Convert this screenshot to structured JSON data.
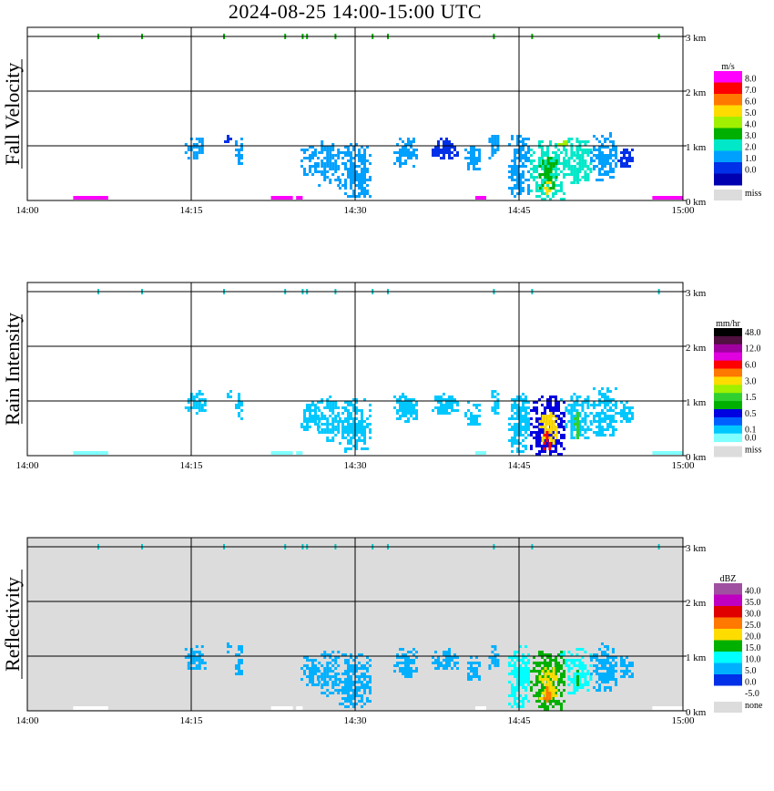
{
  "title": "2024-08-25  14:00-15:00 UTC",
  "chart_data": {
    "type": "heatmap",
    "title": "2024-08-25  14:00-15:00 UTC",
    "x_ticks": [
      "14:00",
      "14:15",
      "14:30",
      "14:45",
      "15:00"
    ],
    "x_range": [
      "14:00",
      "15:00"
    ],
    "y_ticks": [
      "0 km",
      "1 km",
      "2 km",
      "3 km"
    ],
    "y_range_km": [
      0,
      3.2
    ],
    "grid": true,
    "legend_placement": "right",
    "panels": [
      {
        "id": "fall",
        "ylabel": "Fall Velocity",
        "background": "#ffffff",
        "unit": "m/s",
        "colorbar": [
          {
            "label": "8.0",
            "color": "#ff00ff"
          },
          {
            "label": "7.0",
            "color": "#ff0000"
          },
          {
            "label": "6.0",
            "color": "#ff7800"
          },
          {
            "label": "5.0",
            "color": "#ffdc00"
          },
          {
            "label": "4.0",
            "color": "#a0f000"
          },
          {
            "label": "3.0",
            "color": "#00b000"
          },
          {
            "label": "2.0",
            "color": "#00e8c8"
          },
          {
            "label": "1.0",
            "color": "#00a0ff"
          },
          {
            "label": "0.0",
            "color": "#0030e8"
          },
          {
            "label": "",
            "color": "#0000b0"
          }
        ],
        "missing_label": "miss",
        "missing_color": "#dcdcdc"
      },
      {
        "id": "rain",
        "ylabel": "Rain Intensity",
        "background": "#ffffff",
        "unit": "mm/hr",
        "colorbar": [
          {
            "label": "48.0",
            "color": "#000000"
          },
          {
            "label": "",
            "color": "#501040"
          },
          {
            "label": "12.0",
            "color": "#a000a0"
          },
          {
            "label": "",
            "color": "#e000e0"
          },
          {
            "label": "6.0",
            "color": "#ff0000"
          },
          {
            "label": "",
            "color": "#ff7800"
          },
          {
            "label": "3.0",
            "color": "#ffdc00"
          },
          {
            "label": "",
            "color": "#a0f000"
          },
          {
            "label": "1.5",
            "color": "#30d030"
          },
          {
            "label": "",
            "color": "#00b000"
          },
          {
            "label": "0.5",
            "color": "#0000e0"
          },
          {
            "label": "",
            "color": "#0060ff"
          },
          {
            "label": "0.1",
            "color": "#00c8ff"
          },
          {
            "label": "0.0",
            "color": "#80ffff"
          }
        ],
        "missing_label": "miss",
        "missing_color": "#dcdcdc"
      },
      {
        "id": "refl",
        "ylabel": "Reflectivity",
        "background": "#dcdcdc",
        "unit": "dBZ",
        "colorbar": [
          {
            "label": "40.0",
            "color": "#a050a0"
          },
          {
            "label": "35.0",
            "color": "#c000c0"
          },
          {
            "label": "30.0",
            "color": "#e00000"
          },
          {
            "label": "25.0",
            "color": "#ff7800"
          },
          {
            "label": "20.0",
            "color": "#ffdc00"
          },
          {
            "label": "15.0",
            "color": "#00b000"
          },
          {
            "label": "10.0",
            "color": "#00ffff"
          },
          {
            "label": "5.0",
            "color": "#00b0ff"
          },
          {
            "label": "0.0",
            "color": "#0030e8"
          },
          {
            "label": "-5.0",
            "color": "#ffffff"
          }
        ],
        "missing_label": "none",
        "missing_color": "#dcdcdc"
      }
    ],
    "echoes": [
      {
        "t0": 14.4,
        "t1": 16.2,
        "h0": 0.75,
        "h1": 1.2,
        "fall": 1.0,
        "rain": 0.1,
        "refl": 5
      },
      {
        "t0": 18.0,
        "t1": 18.6,
        "h0": 1.05,
        "h1": 1.25,
        "fall": 0.5,
        "rain": 0.1,
        "refl": 5
      },
      {
        "t0": 19.0,
        "t1": 19.7,
        "h0": 0.65,
        "h1": 1.2,
        "fall": 1.0,
        "rain": 0.1,
        "refl": 5
      },
      {
        "t0": 25.0,
        "t1": 26.6,
        "h0": 0.45,
        "h1": 1.0,
        "fall": 1.0,
        "rain": 0.1,
        "refl": 5
      },
      {
        "t0": 26.6,
        "t1": 28.5,
        "h0": 0.25,
        "h1": 1.1,
        "fall": 1.5,
        "rain": 0.1,
        "refl": 5
      },
      {
        "t0": 28.5,
        "t1": 31.5,
        "h0": 0.05,
        "h1": 1.05,
        "fall": 1.0,
        "rain": 0.1,
        "refl": 5
      },
      {
        "t0": 33.5,
        "t1": 35.6,
        "h0": 0.6,
        "h1": 1.15,
        "fall": 1.0,
        "rain": 0.1,
        "refl": 5
      },
      {
        "t0": 37.0,
        "t1": 39.5,
        "h0": 0.75,
        "h1": 1.15,
        "fall": 0.5,
        "rain": 0.1,
        "refl": 5
      },
      {
        "t0": 40.0,
        "t1": 41.5,
        "h0": 0.55,
        "h1": 1.0,
        "fall": 1.0,
        "rain": 0.1,
        "refl": 5
      },
      {
        "t0": 42.2,
        "t1": 43.2,
        "h0": 0.75,
        "h1": 1.2,
        "fall": 1.0,
        "rain": 0.1,
        "refl": 5
      },
      {
        "t0": 44.0,
        "t1": 46.0,
        "h0": 0.05,
        "h1": 1.2,
        "fall": 1.5,
        "rain": 0.3,
        "refl": 10
      },
      {
        "t0": 46.0,
        "t1": 49.2,
        "h0": 0.0,
        "h1": 1.1,
        "fall": 2.5,
        "rain": 1.0,
        "refl": 15
      },
      {
        "t0": 46.8,
        "t1": 48.4,
        "h0": 0.2,
        "h1": 0.8,
        "fall": 3.5,
        "rain": 3.0,
        "refl": 20
      },
      {
        "t0": 47.2,
        "t1": 47.8,
        "h0": 0.1,
        "h1": 0.45,
        "fall": 5.0,
        "rain": 6.0,
        "refl": 25
      },
      {
        "t0": 48.5,
        "t1": 49.5,
        "h0": 1.0,
        "h1": 1.1,
        "fall": 4.0,
        "rain": 0.3,
        "refl": 10
      },
      {
        "t0": 49.2,
        "t1": 51.5,
        "h0": 0.3,
        "h1": 1.15,
        "fall": 2.0,
        "rain": 0.3,
        "refl": 10
      },
      {
        "t0": 50.0,
        "t1": 50.5,
        "h0": 0.3,
        "h1": 0.9,
        "fall": 2.0,
        "rain": 1.5,
        "refl": 15
      },
      {
        "t0": 51.5,
        "t1": 54.0,
        "h0": 0.35,
        "h1": 1.25,
        "fall": 1.0,
        "rain": 0.1,
        "refl": 5
      },
      {
        "t0": 54.0,
        "t1": 55.5,
        "h0": 0.6,
        "h1": 1.0,
        "fall": 0.5,
        "rain": 0.1,
        "refl": 5
      }
    ],
    "low_level_fall": [
      {
        "t0": 4.2,
        "t1": 7.4,
        "fall": 8.0
      },
      {
        "t0": 22.3,
        "t1": 24.3,
        "fall": 8.0
      },
      {
        "t0": 24.6,
        "t1": 25.2,
        "fall": 8.0
      },
      {
        "t0": 41.0,
        "t1": 42.0,
        "fall": 8.0
      },
      {
        "t0": 57.2,
        "t1": 60.0,
        "fall": 8.0
      }
    ],
    "top_marks_min": [
      6.5,
      10.5,
      18.0,
      23.6,
      25.2,
      25.6,
      28.2,
      31.6,
      33.0,
      42.7,
      46.2,
      57.8
    ]
  }
}
